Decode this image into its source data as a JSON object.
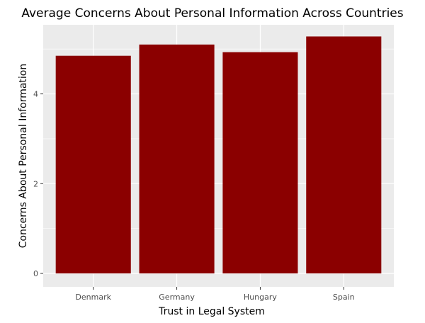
{
  "chart_data": {
    "type": "bar",
    "title": "Average Concerns About Personal Information Across Countries",
    "xlabel": "Trust in Legal System",
    "ylabel": "Concerns About Personal Information",
    "categories": [
      "Denmark",
      "Germany",
      "Hungary",
      "Spain"
    ],
    "values": [
      4.85,
      5.1,
      4.93,
      5.28
    ],
    "ylim": [
      -0.3,
      5.54
    ],
    "yticks": [
      0,
      2,
      4
    ],
    "grid": true,
    "legend": "none",
    "colors": {
      "bar": "#8b0000",
      "panel": "#ebebeb",
      "grid_major": "#ffffff",
      "text": "#000000",
      "tick_text": "#4d4d4d"
    }
  }
}
